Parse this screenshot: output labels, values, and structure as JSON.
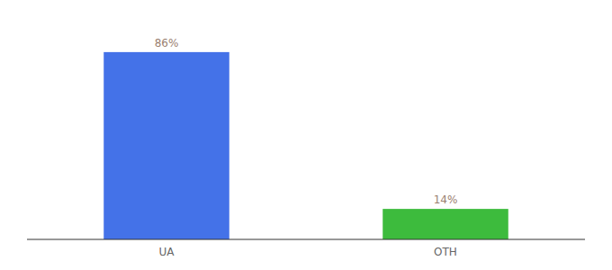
{
  "chart_data": {
    "type": "bar",
    "categories": [
      "UA",
      "OTH"
    ],
    "values": [
      86,
      14
    ],
    "value_labels": [
      "86%",
      "14%"
    ],
    "colors": [
      "#4472e8",
      "#3dbb3d"
    ],
    "ylim": [
      0,
      100
    ],
    "grid": false,
    "data_labels": true,
    "tick_labels": "x"
  }
}
